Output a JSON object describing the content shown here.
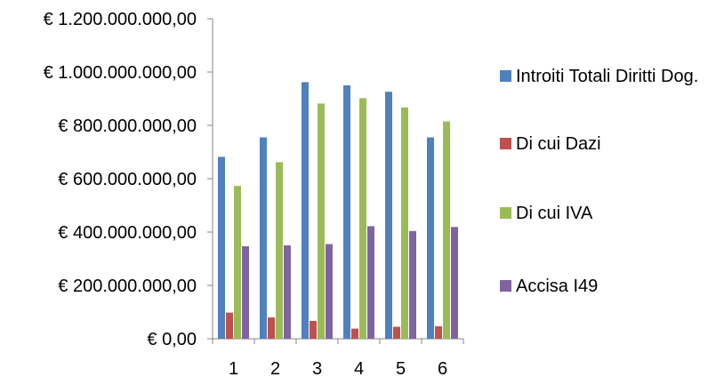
{
  "chart_data": {
    "type": "bar",
    "categories": [
      "1",
      "2",
      "3",
      "4",
      "5",
      "6"
    ],
    "series": [
      {
        "name": "Introiti Totali Diritti Dog.",
        "color": "#4F81BD",
        "values": [
          682000000,
          755000000,
          962000000,
          950000000,
          926000000,
          755000000
        ]
      },
      {
        "name": "Di cui Dazi",
        "color": "#C0504D",
        "values": [
          98000000,
          80000000,
          67000000,
          38000000,
          45000000,
          47000000
        ]
      },
      {
        "name": "Di cui IVA",
        "color": "#9BBB59",
        "values": [
          573000000,
          662000000,
          882000000,
          902000000,
          867000000,
          815000000
        ]
      },
      {
        "name": "Accisa I49",
        "color": "#8064A2",
        "values": [
          347000000,
          350000000,
          355000000,
          422000000,
          404000000,
          419000000
        ]
      }
    ],
    "ylim": [
      0,
      1200000000
    ],
    "yticks": [
      {
        "value": 0,
        "label": "€ 0,00"
      },
      {
        "value": 200000000,
        "label": "€ 200.000.000,00"
      },
      {
        "value": 400000000,
        "label": "€ 400.000.000,00"
      },
      {
        "value": 600000000,
        "label": "€ 600.000.000,00"
      },
      {
        "value": 800000000,
        "label": "€ 800.000.000,00"
      },
      {
        "value": 1000000000,
        "label": "€ 1.000.000.000,00"
      },
      {
        "value": 1200000000,
        "label": "€ 1.200.000.000,00"
      }
    ],
    "grid": false,
    "legend": "right",
    "title": "",
    "xlabel": "",
    "ylabel": ""
  }
}
